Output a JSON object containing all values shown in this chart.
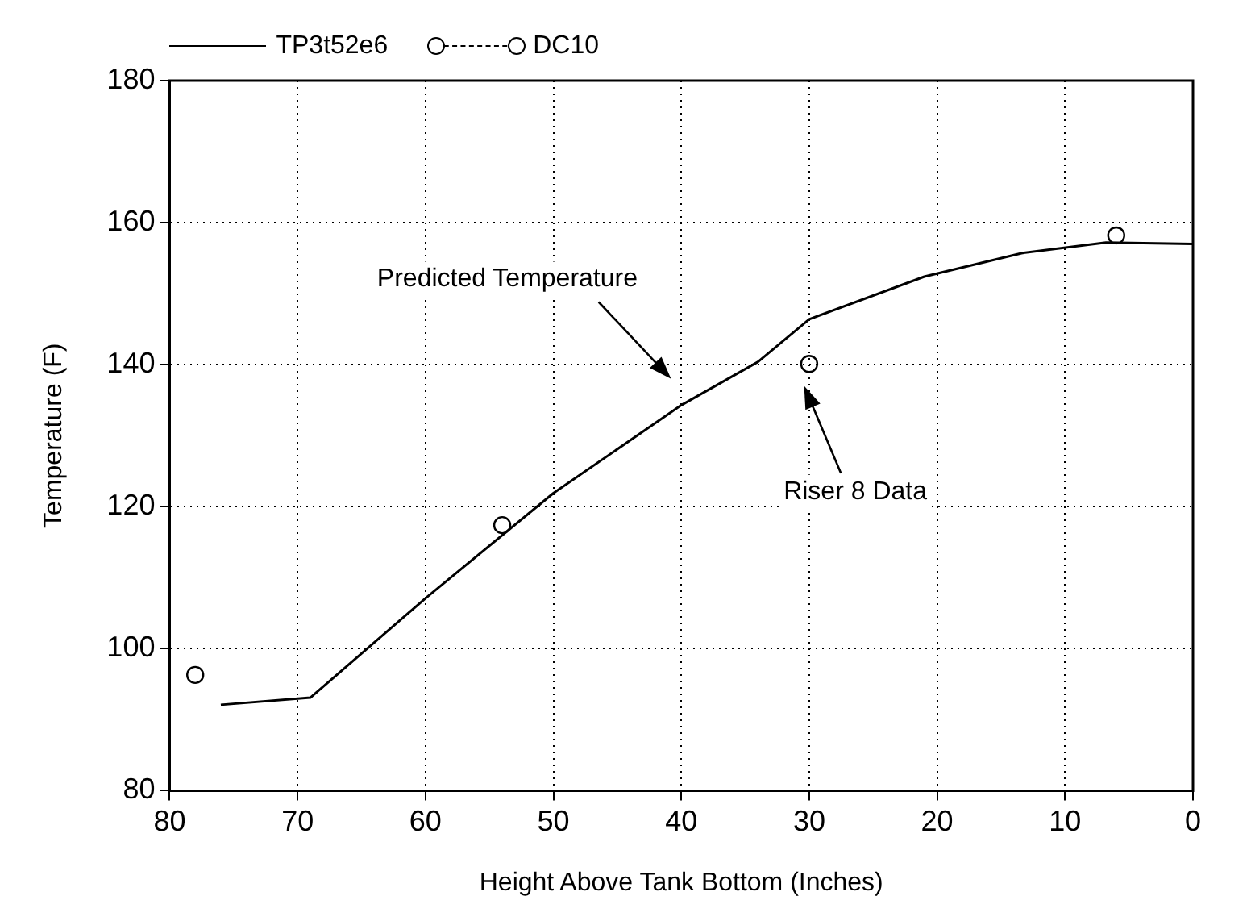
{
  "chart_data": {
    "type": "line",
    "xlabel": "Height Above Tank Bottom (Inches)",
    "ylabel": "Temperature (F)",
    "xlim": [
      80,
      0
    ],
    "xticks": [
      80,
      70,
      60,
      50,
      40,
      30,
      20,
      10,
      0
    ],
    "ylim": [
      80,
      180
    ],
    "yticks": [
      80,
      100,
      120,
      140,
      160,
      180
    ],
    "grid": true,
    "legend": "top left",
    "series": [
      {
        "name": "TP3t52e6",
        "type": "line",
        "color": "#000000",
        "line_style": "solid",
        "marker": "none",
        "x": [
          76,
          69,
          60,
          50,
          40,
          34,
          30,
          21,
          13.4,
          6.8,
          0
        ],
        "values": [
          92.1,
          93.1,
          107.1,
          121.9,
          134.3,
          140.4,
          146.4,
          152.4,
          155.7,
          157.2,
          157
        ]
      },
      {
        "name": "DC10",
        "type": "scatter",
        "color": "#000000",
        "line_style": "dashed",
        "marker": "circle",
        "x": [
          78,
          54,
          30,
          6
        ],
        "values": [
          96.3,
          117.4,
          140.1,
          158.2
        ]
      }
    ],
    "annotations": [
      "Predicted Temperature",
      "Riser 8 Data"
    ]
  }
}
